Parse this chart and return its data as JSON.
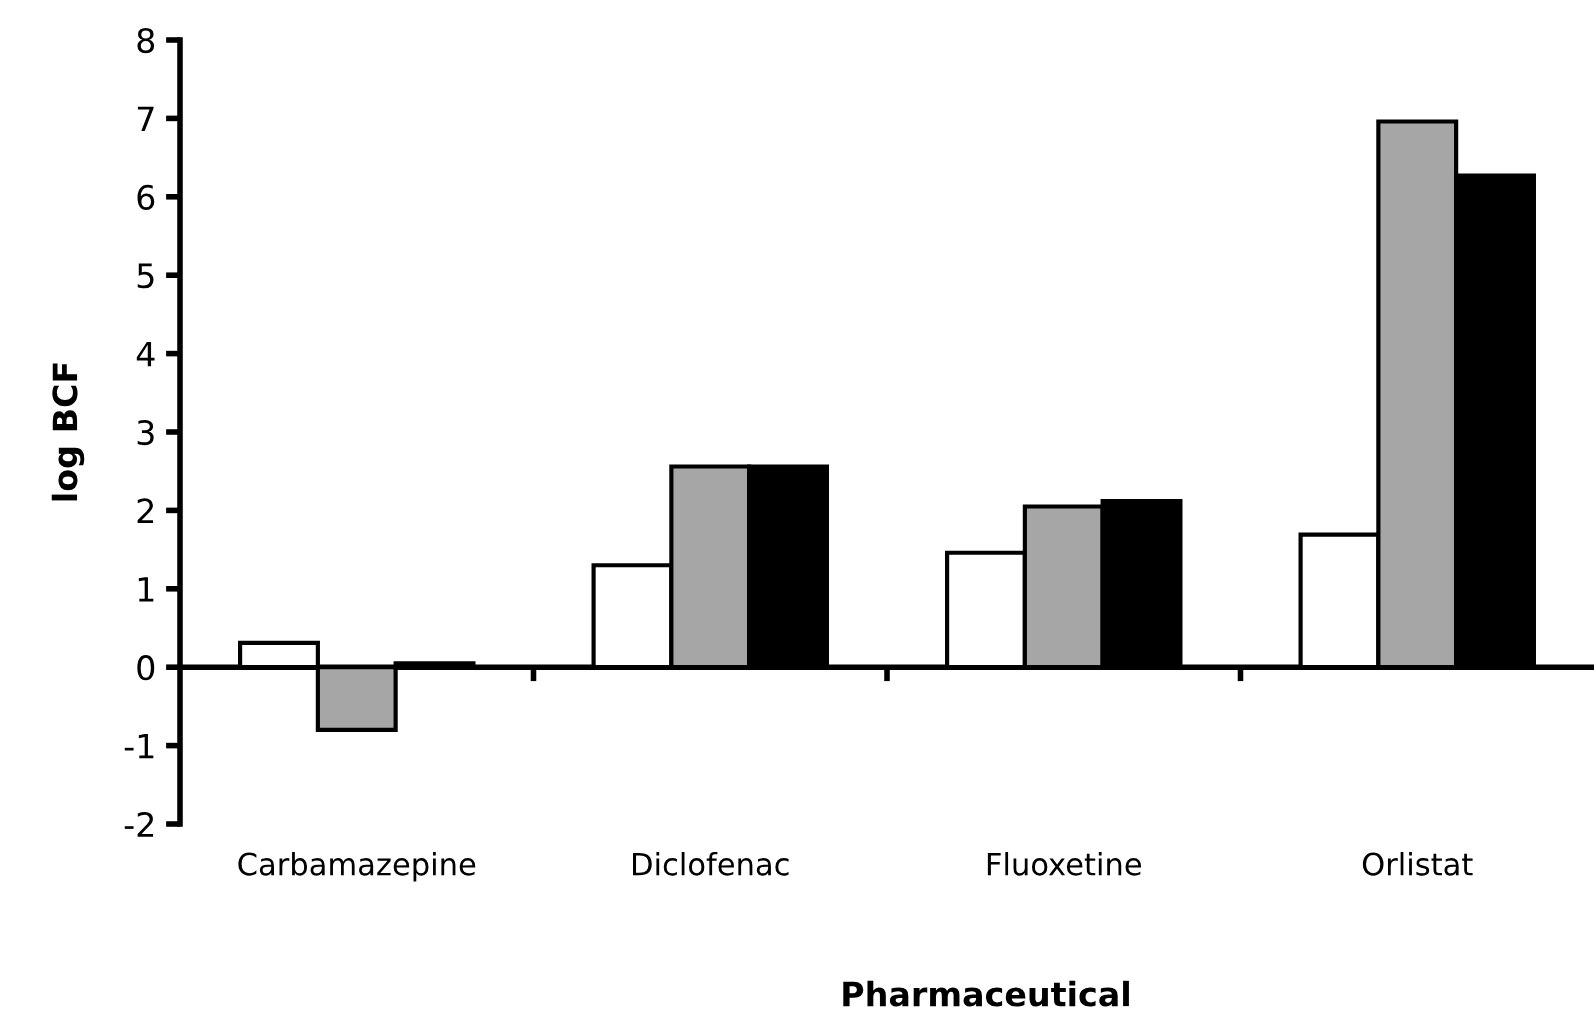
{
  "chart_data": {
    "type": "bar",
    "xlabel": "Pharmaceutical",
    "ylabel": "log BCF",
    "categories": [
      "Carbamazepine",
      "Diclofenac",
      "Fluoxetine",
      "Orlistat"
    ],
    "series": [
      {
        "color": "#ffffff",
        "values": [
          0.31,
          1.3,
          1.46,
          1.69
        ]
      },
      {
        "color": "#a6a6a6",
        "values": [
          -0.8,
          2.56,
          2.05,
          6.96
        ]
      },
      {
        "color": "#000000",
        "values": [
          0.05,
          2.56,
          2.12,
          6.27
        ]
      }
    ],
    "ylim": [
      -2,
      8
    ],
    "yticks": [
      -2,
      -1,
      0,
      1,
      2,
      3,
      4,
      5,
      6,
      7,
      8
    ]
  }
}
